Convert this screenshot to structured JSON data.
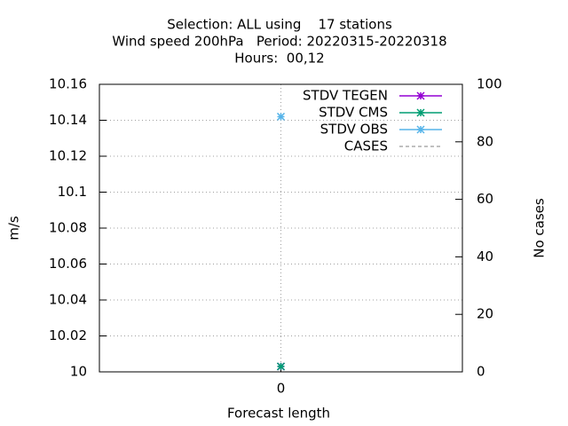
{
  "chart_data": {
    "type": "line",
    "title": [
      "Selection: ALL using    17 stations",
      "Wind speed 200hPa   Period: 20220315-20220318",
      "Hours:  00,12"
    ],
    "x_label": "Forecast length",
    "y_label": "m/s",
    "y2_label": "No cases",
    "categories": [
      "0"
    ],
    "series": [
      {
        "name": "STDV TEGEN",
        "color": "#9400d3",
        "values": [
          10.003
        ]
      },
      {
        "name": "STDV CMS",
        "color": "#009e73",
        "values": [
          10.003
        ]
      },
      {
        "name": "STDV OBS",
        "color": "#56b4e9",
        "values": [
          10.142
        ]
      },
      {
        "name": "CASES",
        "color": "#808080",
        "axis": "y2",
        "dashed": true,
        "values": [
          null
        ]
      }
    ],
    "ylim": [
      10,
      10.16
    ],
    "yticks": [
      10,
      10.02,
      10.04,
      10.06,
      10.08,
      10.1,
      10.12,
      10.14,
      10.16
    ],
    "y2lim": [
      0,
      100
    ],
    "y2ticks": [
      0,
      20,
      40,
      60,
      80,
      100
    ],
    "grid": true,
    "legend": "top-right"
  }
}
